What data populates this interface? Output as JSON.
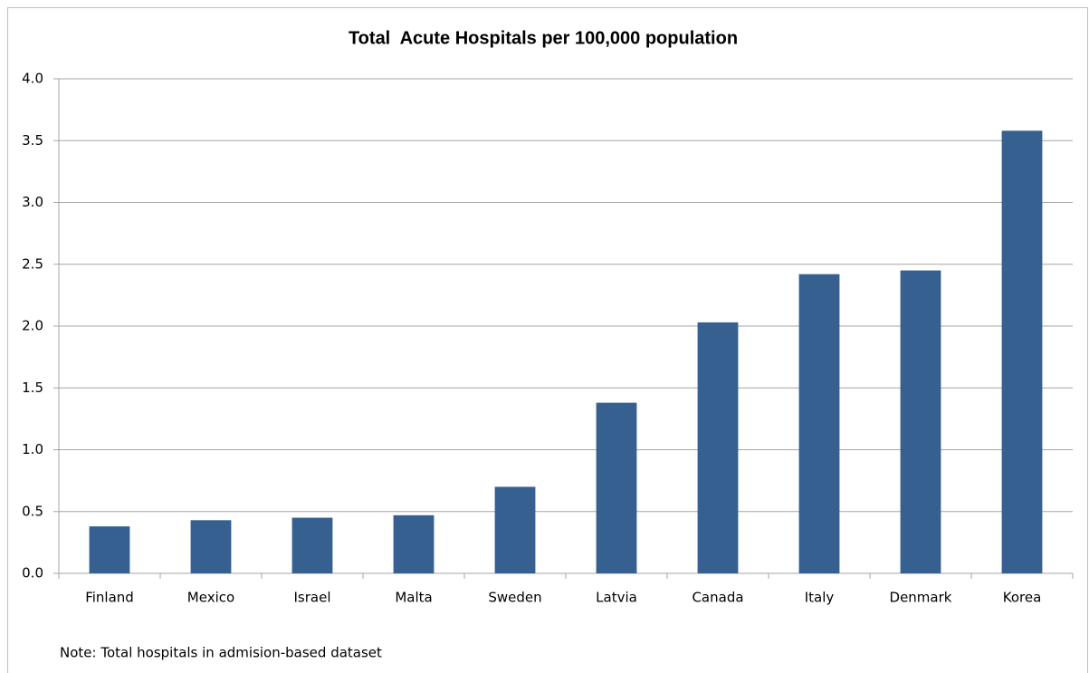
{
  "chart_data": {
    "type": "bar",
    "title": "Total  Acute Hospitals per 100,000 population",
    "categories": [
      "Finland",
      "Mexico",
      "Israel",
      "Malta",
      "Sweden",
      "Latvia",
      "Canada",
      "Italy",
      "Denmark",
      "Korea"
    ],
    "values": [
      0.38,
      0.43,
      0.45,
      0.47,
      0.7,
      1.38,
      2.03,
      2.42,
      2.45,
      3.58
    ],
    "color": "#35608f",
    "ylim": [
      0,
      4
    ],
    "yticks": [
      {
        "value": 0,
        "label": "0.0"
      },
      0.5,
      {
        "value": 1,
        "label": "1.0"
      },
      1.5,
      {
        "value": 2,
        "label": "2.0"
      },
      2.5,
      {
        "value": 3,
        "label": "3.0"
      },
      3.5,
      {
        "value": 4,
        "label": "4.0"
      }
    ],
    "grid": true,
    "annotation": "Note: Total hospitals in admision-based dataset"
  }
}
